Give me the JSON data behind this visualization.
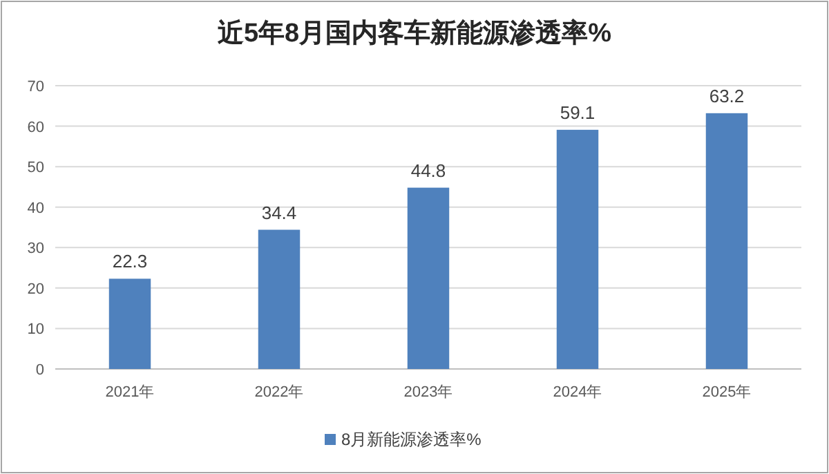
{
  "chart_data": {
    "type": "bar",
    "title": "近5年8月国内客车新能源渗透率%",
    "categories": [
      "2021年",
      "2022年",
      "2023年",
      "2024年",
      "2025年"
    ],
    "series": [
      {
        "name": "8月新能源渗透率%",
        "color": "#4f81bd",
        "values": [
          22.3,
          34.4,
          44.8,
          59.1,
          63.2
        ]
      }
    ],
    "ylim": [
      0,
      70
    ],
    "yticks": [
      0,
      10,
      20,
      30,
      40,
      50,
      60,
      70
    ],
    "grid": "y",
    "legend": "bottom",
    "data_labels": true
  }
}
